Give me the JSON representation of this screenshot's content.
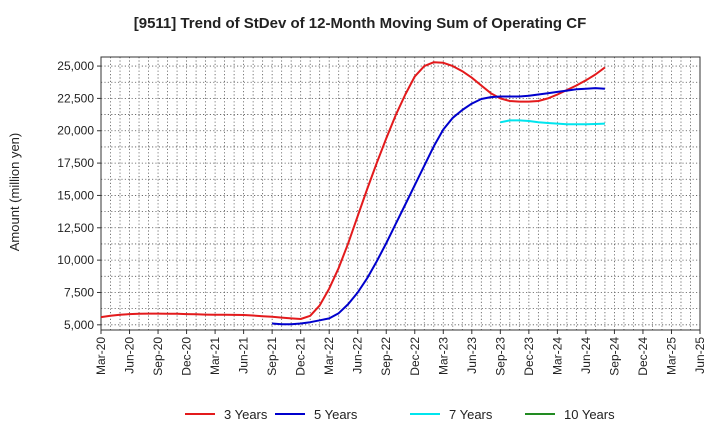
{
  "chart_data": {
    "type": "line",
    "title": "[9511]  Trend of StDev of 12-Month Moving Sum of Operating CF",
    "xlabel": "",
    "ylabel": "Amount (million yen)",
    "x_ticks": [
      "Mar-20",
      "Jun-20",
      "Sep-20",
      "Dec-20",
      "Mar-21",
      "Jun-21",
      "Sep-21",
      "Dec-21",
      "Mar-22",
      "Jun-22",
      "Sep-22",
      "Dec-22",
      "Mar-23",
      "Jun-23",
      "Sep-23",
      "Dec-23",
      "Mar-24",
      "Jun-24",
      "Sep-24",
      "Dec-24",
      "Mar-25",
      "Jun-25"
    ],
    "y_ticks": [
      5000,
      7500,
      10000,
      12500,
      15000,
      17500,
      20000,
      22500,
      25000
    ],
    "y_tick_labels": [
      "5,000",
      "7,500",
      "10,000",
      "12,500",
      "15,000",
      "17,500",
      "20,000",
      "22,500",
      "25,000"
    ],
    "ylim": [
      4600,
      25700
    ],
    "grid": true,
    "legend_position": "bottom",
    "series": [
      {
        "name": "3 Years",
        "color": "#e31a1c",
        "x": [
          0,
          1,
          2,
          3,
          4,
          5,
          6,
          7,
          8,
          9,
          10,
          11,
          12,
          13,
          14,
          15,
          16,
          17,
          18,
          19,
          20,
          21,
          22,
          23,
          24,
          25,
          26,
          27,
          28,
          29,
          30,
          31,
          32,
          33,
          34,
          35,
          36,
          37,
          38,
          39,
          40,
          41,
          42,
          43,
          44,
          45,
          46,
          47,
          48,
          49,
          50,
          51,
          52,
          53,
          54,
          55,
          56,
          57,
          58,
          59,
          60
        ],
        "values": [
          5600,
          5700,
          5780,
          5830,
          5860,
          5870,
          5870,
          5860,
          5850,
          5830,
          5810,
          5790,
          5780,
          5780,
          5770,
          5760,
          5720,
          5670,
          5620,
          5560,
          5500,
          5450,
          5700,
          6500,
          7800,
          9400,
          11300,
          13400,
          15500,
          17500,
          19400,
          21200,
          22800,
          24200,
          25000,
          25300,
          25250,
          25000,
          24600,
          24100,
          23500,
          22900,
          22500,
          22300,
          22250,
          22250,
          22300,
          22500,
          22800,
          23150,
          23500,
          23900,
          24350,
          24900,
          null,
          null,
          null,
          null,
          null,
          null,
          null
        ]
      },
      {
        "name": "5 Years",
        "color": "#0000cd",
        "x": [
          18,
          19,
          20,
          21,
          22,
          23,
          24,
          25,
          26,
          27,
          28,
          29,
          30,
          31,
          32,
          33,
          34,
          35,
          36,
          37,
          38,
          39,
          40,
          41,
          42,
          43,
          44,
          45,
          46,
          47,
          48,
          49,
          50,
          51,
          52,
          53
        ],
        "values": [
          5100,
          5050,
          5050,
          5100,
          5200,
          5350,
          5500,
          5900,
          6600,
          7500,
          8600,
          9900,
          11300,
          12800,
          14300,
          15800,
          17300,
          18800,
          20100,
          21000,
          21600,
          22100,
          22450,
          22600,
          22650,
          22650,
          22650,
          22700,
          22800,
          22900,
          23000,
          23100,
          23200,
          23250,
          23300,
          23250
        ]
      },
      {
        "name": "7 Years",
        "color": "#00e5ee",
        "x": [
          42,
          43,
          44,
          45,
          46,
          47,
          48,
          49,
          50,
          51,
          52,
          53
        ],
        "values": [
          20650,
          20800,
          20800,
          20750,
          20650,
          20600,
          20550,
          20500,
          20500,
          20500,
          20520,
          20550
        ]
      },
      {
        "name": "10 Years",
        "color": "#228b22",
        "x": [],
        "values": []
      }
    ]
  }
}
